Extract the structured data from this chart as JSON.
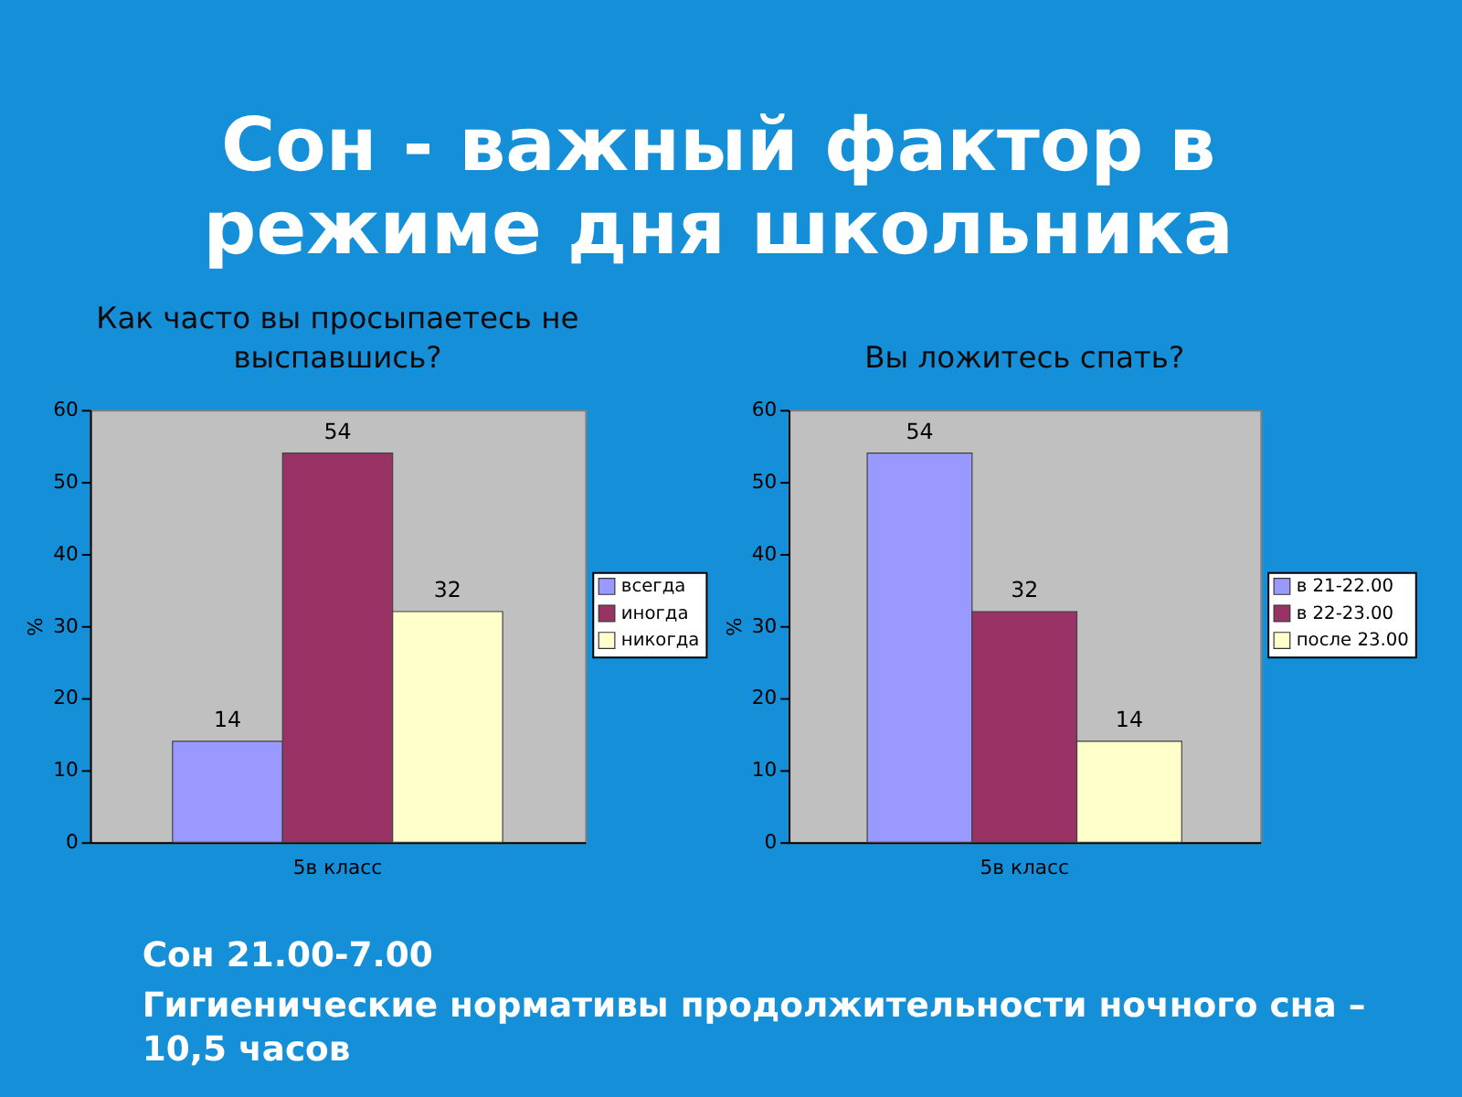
{
  "chart_data": [
    {
      "type": "other",
      "title": "Сон - важный фактор в режиме дня школьника"
    },
    {
      "type": "bar",
      "title": "Как часто вы просыпаетесь не выспавшись?",
      "categories": [
        "5в класс"
      ],
      "series": [
        {
          "name": "всегда",
          "color": "#9999ff",
          "values": [
            14
          ]
        },
        {
          "name": "иногда",
          "color": "#993366",
          "values": [
            54
          ]
        },
        {
          "name": "никогда",
          "color": "#ffffcc",
          "values": [
            32
          ]
        }
      ],
      "ylabel": "%",
      "ylim": [
        0,
        60
      ],
      "yticks": [
        0,
        10,
        20,
        30,
        40,
        50,
        60
      ],
      "data_labels": true,
      "legend": "right"
    },
    {
      "type": "bar",
      "title": "Вы ложитесь спать?",
      "categories": [
        "5в класс"
      ],
      "series": [
        {
          "name": "в 21-22.00",
          "color": "#9999ff",
          "values": [
            54
          ]
        },
        {
          "name": "в 22-23.00",
          "color": "#993366",
          "values": [
            32
          ]
        },
        {
          "name": "после 23.00",
          "color": "#ffffcc",
          "values": [
            14
          ]
        }
      ],
      "ylabel": "%",
      "ylim": [
        0,
        60
      ],
      "yticks": [
        0,
        10,
        20,
        30,
        40,
        50,
        60
      ],
      "data_labels": true,
      "legend": "right"
    },
    {
      "type": "other",
      "annotations": [
        "Сон 21.00-7.00",
        "Гигиенические нормативы продолжительности ночного сна – 10,5 часов"
      ]
    }
  ]
}
